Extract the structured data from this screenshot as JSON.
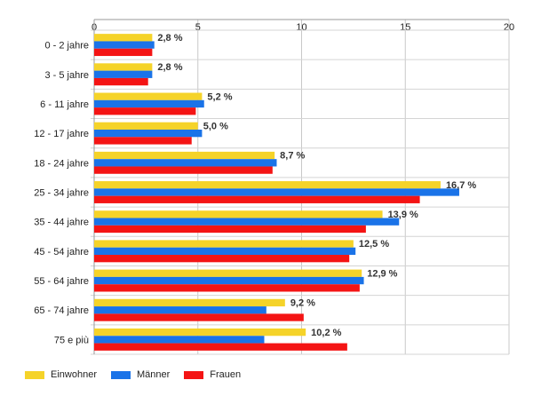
{
  "chart_data": {
    "type": "bar",
    "orientation": "horizontal",
    "categories": [
      "0 - 2 jahre",
      "3 - 5 jahre",
      "6 - 11 jahre",
      "12 - 17 jahre",
      "18 - 24 jahre",
      "25 - 34 jahre",
      "35 - 44 jahre",
      "45 - 54 jahre",
      "55 - 64 jahre",
      "65 - 74 jahre",
      "75 e più"
    ],
    "series": [
      {
        "name": "Einwohner",
        "color": "#f5d329",
        "values": [
          2.8,
          2.8,
          5.2,
          5.0,
          8.7,
          16.7,
          13.9,
          12.5,
          12.9,
          9.2,
          10.2
        ]
      },
      {
        "name": "Männer",
        "color": "#1a73e8",
        "values": [
          2.9,
          2.8,
          5.3,
          5.2,
          8.8,
          17.6,
          14.7,
          12.6,
          13.0,
          8.3,
          8.2
        ]
      },
      {
        "name": "Frauen",
        "color": "#f41414",
        "values": [
          2.8,
          2.6,
          4.9,
          4.7,
          8.6,
          15.7,
          13.1,
          12.3,
          12.8,
          10.1,
          12.2
        ]
      }
    ],
    "data_labels": [
      "2,8 %",
      "2,8 %",
      "5,2 %",
      "5,0 %",
      "8,7 %",
      "16,7 %",
      "13,9 %",
      "12,5 %",
      "12,9 %",
      "9,2 %",
      "10,2 %"
    ],
    "x_ticks": [
      "0",
      "5",
      "10",
      "15",
      "20"
    ],
    "xlim": [
      0,
      20
    ],
    "grid": true,
    "legend_position": "bottom-left"
  }
}
